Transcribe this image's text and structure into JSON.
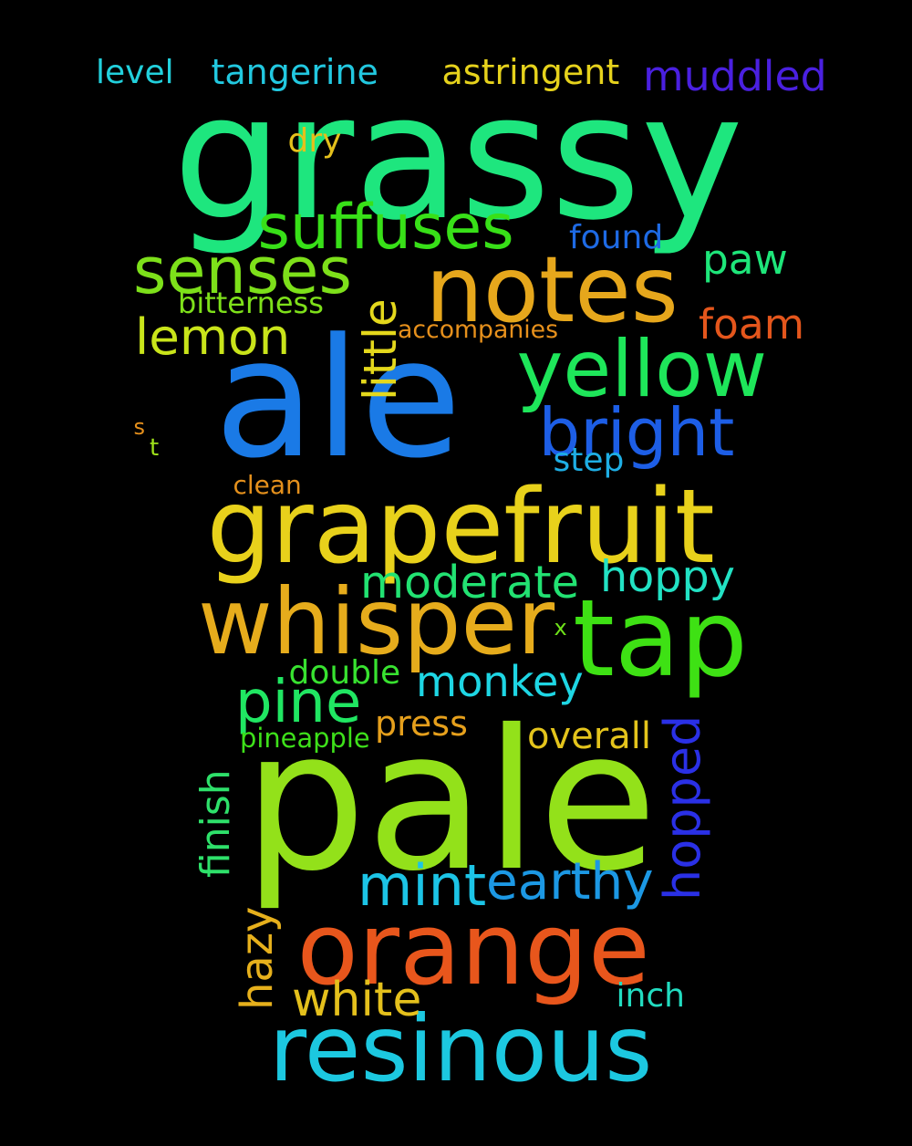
{
  "background": "#000000",
  "words": [
    {
      "text": "grassy",
      "color": "#1ee67e"
    },
    {
      "text": "ale",
      "color": "#1a7ae6"
    },
    {
      "text": "pale",
      "color": "#93e11a"
    },
    {
      "text": "notes",
      "color": "#e6a71c"
    },
    {
      "text": "grapefruit",
      "color": "#e8d11b"
    },
    {
      "text": "whisper",
      "color": "#e6ac1c"
    },
    {
      "text": "tap",
      "color": "#3ee114"
    },
    {
      "text": "orange",
      "color": "#e8561c"
    },
    {
      "text": "resinous",
      "color": "#1cc8e0"
    },
    {
      "text": "yellow",
      "color": "#1ee65a"
    },
    {
      "text": "bright",
      "color": "#1d5ee6"
    },
    {
      "text": "suffuses",
      "color": "#38e018"
    },
    {
      "text": "senses",
      "color": "#7de01a"
    },
    {
      "text": "little",
      "color": "#e4d81c"
    },
    {
      "text": "lemon",
      "color": "#c9e41a"
    },
    {
      "text": "pine",
      "color": "#20e662"
    },
    {
      "text": "hopped",
      "color": "#2a30e6"
    },
    {
      "text": "earthy",
      "color": "#1c98e4"
    },
    {
      "text": "mint",
      "color": "#1cc4e6"
    },
    {
      "text": "monkey",
      "color": "#1ed6e4"
    },
    {
      "text": "moderate",
      "color": "#22e272"
    },
    {
      "text": "hoppy",
      "color": "#22e2c4"
    },
    {
      "text": "muddled",
      "color": "#4a20e0"
    },
    {
      "text": "foam",
      "color": "#e4561c"
    },
    {
      "text": "paw",
      "color": "#1ee67a"
    },
    {
      "text": "finish",
      "color": "#2ee06a"
    },
    {
      "text": "hazy",
      "color": "#e6b01c"
    },
    {
      "text": "white",
      "color": "#e4c01c"
    },
    {
      "text": "astringent",
      "color": "#e6d21c"
    },
    {
      "text": "tangerine",
      "color": "#22c8e0"
    },
    {
      "text": "level",
      "color": "#22d0dc"
    },
    {
      "text": "found",
      "color": "#1e6ae4"
    },
    {
      "text": "overall",
      "color": "#e4c41c"
    },
    {
      "text": "press",
      "color": "#e6a01c"
    },
    {
      "text": "step",
      "color": "#1eaee4"
    },
    {
      "text": "inch",
      "color": "#22dcc0"
    },
    {
      "text": "double",
      "color": "#38e230"
    },
    {
      "text": "bitterness",
      "color": "#7ee01a"
    },
    {
      "text": "dry",
      "color": "#e4c01c"
    },
    {
      "text": "clean",
      "color": "#e4901c"
    },
    {
      "text": "accompanies",
      "color": "#e6901c"
    },
    {
      "text": "pineapple",
      "color": "#3ee01a"
    },
    {
      "text": "s",
      "color": "#e6901c"
    },
    {
      "text": "t",
      "color": "#9ee01a"
    },
    {
      "text": "x",
      "color": "#6ee01a"
    }
  ]
}
